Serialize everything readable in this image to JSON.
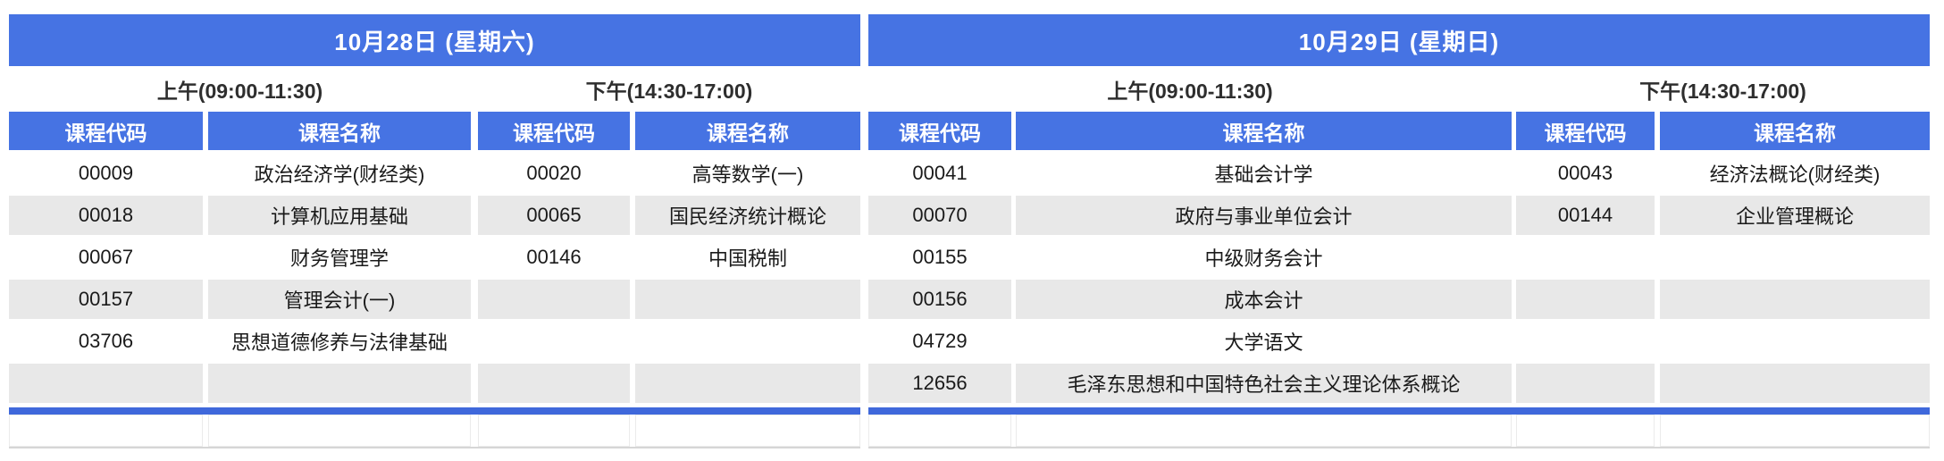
{
  "theme": {
    "header_blue": "#4673E3",
    "divider_blue": "#3F68DB",
    "band_gray": "#E8E8E8",
    "triangle_green": "#1E8C45",
    "grid_light": "#D6D6D6"
  },
  "column_headers": {
    "code": "课程代码",
    "name": "课程名称"
  },
  "days": [
    {
      "title": "10月28日 (星期六)",
      "sessions": [
        {
          "label": "上午(09:00-11:30)",
          "rows": [
            {
              "code": "00009",
              "name": "政治经济学(财经类)"
            },
            {
              "code": "00018",
              "name": "计算机应用基础"
            },
            {
              "code": "00067",
              "name": "财务管理学"
            },
            {
              "code": "00157",
              "name": "管理会计(一)"
            },
            {
              "code": "03706",
              "name": "思想道德修养与法律基础"
            },
            {
              "code": "",
              "name": ""
            }
          ]
        },
        {
          "label": "下午(14:30-17:00)",
          "rows": [
            {
              "code": "00020",
              "name": "高等数学(一)"
            },
            {
              "code": "00065",
              "name": "国民经济统计概论"
            },
            {
              "code": "00146",
              "name": "中国税制"
            },
            {
              "code": "",
              "name": ""
            },
            {
              "code": "",
              "name": ""
            },
            {
              "code": "",
              "name": ""
            }
          ]
        }
      ]
    },
    {
      "title": "10月29日 (星期日)",
      "sessions": [
        {
          "label": "上午(09:00-11:30)",
          "rows": [
            {
              "code": "00041",
              "name": "基础会计学"
            },
            {
              "code": "00070",
              "name": "政府与事业单位会计"
            },
            {
              "code": "00155",
              "name": "中级财务会计"
            },
            {
              "code": "00156",
              "name": "成本会计"
            },
            {
              "code": "04729",
              "name": "大学语文"
            },
            {
              "code": "12656",
              "name": "毛泽东思想和中国特色社会主义理论体系概论"
            }
          ]
        },
        {
          "label": "下午(14:30-17:00)",
          "rows": [
            {
              "code": "00043",
              "name": "经济法概论(财经类)"
            },
            {
              "code": "00144",
              "name": "企业管理概论"
            },
            {
              "code": "",
              "name": ""
            },
            {
              "code": "",
              "name": ""
            },
            {
              "code": "",
              "name": ""
            },
            {
              "code": "",
              "name": ""
            }
          ]
        }
      ]
    }
  ]
}
